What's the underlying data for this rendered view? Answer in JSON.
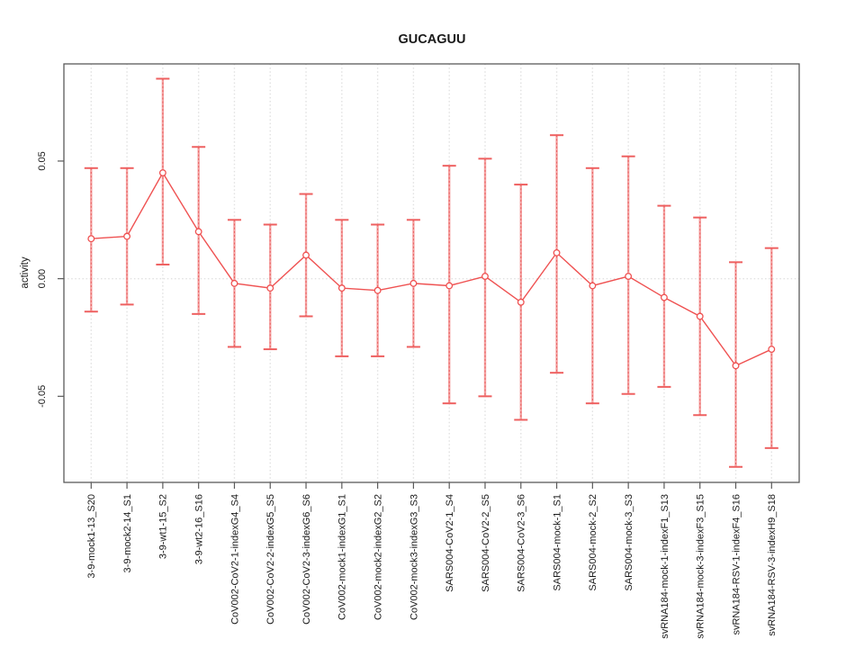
{
  "figure": {
    "title": "GUCAGUU",
    "ylabel": "activity"
  },
  "chart_data": {
    "type": "line",
    "subtype": "points-with-error-bars",
    "title": "GUCAGUU",
    "xlabel": "",
    "ylabel": "activity",
    "ylim": [
      -0.0866,
      0.0913
    ],
    "yticks": [
      -0.05,
      0.0,
      0.05
    ],
    "ytick_labels": [
      "-0.05",
      "0.00",
      "0.05"
    ],
    "grid": "dotted vertical gridline at each category, dotted horizontal line at y=0",
    "legend_position": "none",
    "categories": [
      "3-9-mock1-13_S20",
      "3-9-mock2-14_S1",
      "3-9-wt1-15_S2",
      "3-9-wt2-16_S16",
      "CoV002-CoV2-1-indexG4_S4",
      "CoV002-CoV2-2-indexG5_S5",
      "CoV002-CoV2-3-indexG6_S6",
      "CoV002-mock1-indexG1_S1",
      "CoV002-mock2-indexG2_S2",
      "CoV002-mock3-indexG3_S3",
      "SARS004-CoV2-1_S4",
      "SARS004-CoV2-2_S5",
      "SARS004-CoV2-3_S6",
      "SARS004-mock-1_S1",
      "SARS004-mock-2_S2",
      "SARS004-mock-3_S3",
      "svRNA184-mock-1-indexF1_S13",
      "svRNA184-mock-3-indexF3_S15",
      "svRNA184-RSV-1-indexF4_S16",
      "svRNA184-RSV-3-indexH9_S18"
    ],
    "series": [
      {
        "name": "activity",
        "means": [
          0.017,
          0.018,
          0.045,
          0.02,
          -0.002,
          -0.004,
          0.01,
          -0.004,
          -0.005,
          -0.002,
          -0.003,
          0.001,
          -0.01,
          0.011,
          -0.003,
          0.001,
          -0.008,
          -0.016,
          -0.037,
          -0.03
        ],
        "lower": [
          -0.014,
          -0.011,
          0.006,
          -0.015,
          -0.029,
          -0.03,
          -0.016,
          -0.033,
          -0.033,
          -0.029,
          -0.053,
          -0.05,
          -0.06,
          -0.04,
          -0.053,
          -0.049,
          -0.046,
          -0.058,
          -0.08,
          -0.072
        ],
        "upper": [
          0.047,
          0.047,
          0.085,
          0.056,
          0.025,
          0.023,
          0.036,
          0.025,
          0.023,
          0.025,
          0.048,
          0.051,
          0.04,
          0.061,
          0.047,
          0.052,
          0.031,
          0.026,
          0.007,
          0.013
        ]
      }
    ],
    "colors": {
      "point_line": "#ef5252",
      "error_bar": "#f5a3a3",
      "error_bar_dash": "#e85f5f",
      "error_cap": "#ee6060",
      "grid": "#e1e1e1",
      "axis": "#5a5a5a",
      "text": "#1a1a1a"
    }
  }
}
